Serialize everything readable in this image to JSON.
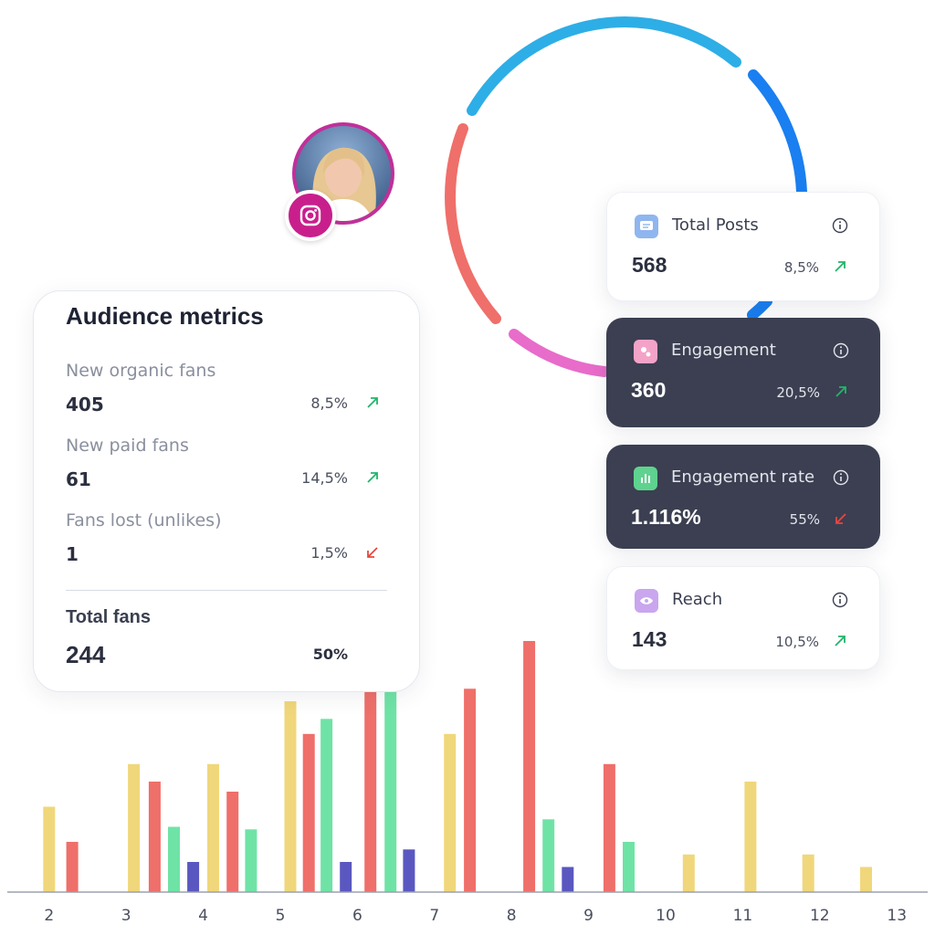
{
  "ring": {
    "segments": [
      {
        "name": "light-blue",
        "color": "#2eaee6"
      },
      {
        "name": "blue",
        "color": "#1a7ff0"
      },
      {
        "name": "pink",
        "color": "#e86cc9"
      },
      {
        "name": "coral",
        "color": "#ef6f6a"
      }
    ]
  },
  "profile": {
    "avatar_icon": "person-avatar",
    "badge_icon": "instagram-icon",
    "badge_color": "#c81f8c"
  },
  "audience": {
    "title": "Audience metrics",
    "metrics": [
      {
        "label": "New organic fans",
        "value": "405",
        "pct": "8,5%",
        "trend": "up"
      },
      {
        "label": "New paid fans",
        "value": "61",
        "pct": "14,5%",
        "trend": "up"
      },
      {
        "label": "Fans lost (unlikes)",
        "value": "1",
        "pct": "1,5%",
        "trend": "down"
      }
    ],
    "total_label": "Total fans",
    "total_value": "244",
    "total_pct": "50%"
  },
  "stats": [
    {
      "title": "Total Posts",
      "value": "568",
      "pct": "8,5%",
      "trend": "up",
      "theme": "light",
      "icon": "message-icon",
      "icon_color": "#8fb6f0"
    },
    {
      "title": "Engagement",
      "value": "360",
      "pct": "20,5%",
      "trend": "up",
      "theme": "dark",
      "icon": "engagement-icon",
      "icon_color": "#f4a3c8"
    },
    {
      "title": "Engagement rate",
      "value": "1.116%",
      "pct": "55%",
      "trend": "down",
      "theme": "dark",
      "icon": "bar-chart-icon",
      "icon_color": "#5fd28f"
    },
    {
      "title": "Reach",
      "value": "143",
      "pct": "10,5%",
      "trend": "up",
      "theme": "light",
      "icon": "eye-icon",
      "icon_color": "#c9a6ee"
    }
  ],
  "colors": {
    "up": "#22b56a",
    "down": "#e5483f"
  },
  "chart_data": {
    "type": "bar",
    "x_ticks": [
      "2",
      "3",
      "4",
      "5",
      "6",
      "7",
      "8",
      "9",
      "10",
      "11",
      "12",
      "13"
    ],
    "xlim": [
      1.6,
      13.4
    ],
    "ylim": [
      0,
      100
    ],
    "series_colors": {
      "yellow": "#f0d77b",
      "red": "#ef6f6a",
      "green": "#6fe3a6",
      "purple": "#5a58c0"
    },
    "bars": [
      {
        "x": 2.0,
        "value": 34,
        "color": "yellow"
      },
      {
        "x": 2.3,
        "value": 20,
        "color": "red"
      },
      {
        "x": 3.1,
        "value": 51,
        "color": "yellow"
      },
      {
        "x": 3.37,
        "value": 44,
        "color": "red"
      },
      {
        "x": 3.62,
        "value": 26,
        "color": "green"
      },
      {
        "x": 3.87,
        "value": 12,
        "color": "purple"
      },
      {
        "x": 4.13,
        "value": 51,
        "color": "yellow"
      },
      {
        "x": 4.38,
        "value": 40,
        "color": "red"
      },
      {
        "x": 4.62,
        "value": 25,
        "color": "green"
      },
      {
        "x": 5.13,
        "value": 76,
        "color": "yellow"
      },
      {
        "x": 5.37,
        "value": 63,
        "color": "red"
      },
      {
        "x": 5.6,
        "value": 69,
        "color": "green"
      },
      {
        "x": 5.85,
        "value": 12,
        "color": "purple"
      },
      {
        "x": 6.17,
        "value": 100,
        "color": "red"
      },
      {
        "x": 6.43,
        "value": 90,
        "color": "green"
      },
      {
        "x": 6.67,
        "value": 17,
        "color": "purple"
      },
      {
        "x": 7.2,
        "value": 63,
        "color": "yellow"
      },
      {
        "x": 7.46,
        "value": 81,
        "color": "red"
      },
      {
        "x": 8.23,
        "value": 100,
        "color": "red"
      },
      {
        "x": 8.48,
        "value": 29,
        "color": "green"
      },
      {
        "x": 8.73,
        "value": 10,
        "color": "purple"
      },
      {
        "x": 9.27,
        "value": 51,
        "color": "red"
      },
      {
        "x": 9.52,
        "value": 20,
        "color": "green"
      },
      {
        "x": 10.3,
        "value": 15,
        "color": "yellow"
      },
      {
        "x": 11.1,
        "value": 44,
        "color": "yellow"
      },
      {
        "x": 11.85,
        "value": 15,
        "color": "yellow"
      },
      {
        "x": 12.6,
        "value": 10,
        "color": "yellow"
      }
    ]
  }
}
